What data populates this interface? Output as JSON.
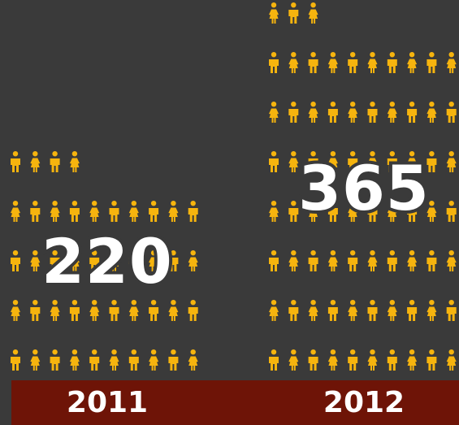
{
  "chart_data": {
    "type": "pictogram",
    "categories": [
      "2011",
      "2012"
    ],
    "values": [
      220,
      365
    ],
    "icon_rows": [
      {
        "full_rows": 4,
        "partial": 4,
        "per_row": 10
      },
      {
        "full_rows": 7,
        "partial": 3,
        "per_row": 10
      }
    ]
  },
  "labels": {
    "year_2011": "2011",
    "year_2012": "2012",
    "value_2011": "220",
    "value_2012": "365"
  },
  "colors": {
    "icon": "#f6b40e",
    "bar": "#6e1407",
    "background": "#3a3a3a"
  },
  "icons": [
    "male-figure-icon",
    "female-figure-icon"
  ]
}
